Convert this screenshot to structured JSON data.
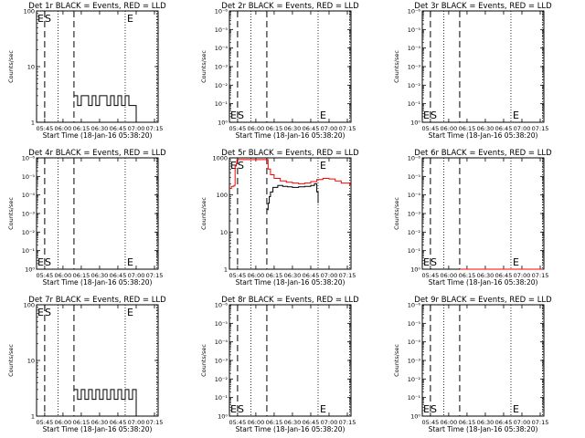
{
  "x_axis": {
    "label": "Start Time (18-Jan-16 05:38:20)",
    "range": [
      "05:38:20",
      "07:18:00"
    ],
    "ticks": [
      "05:45",
      "06:00",
      "06:15",
      "06:30",
      "06:45",
      "07:00",
      "07:15"
    ]
  },
  "y_axis_label": "Counts/sec",
  "colors": {
    "events": "#000000",
    "lld": "#ff0000"
  },
  "markers": {
    "dashed": [
      "05:45",
      "06:09"
    ],
    "dotted": [
      "05:56",
      "06:51",
      "07:17"
    ]
  },
  "flag_labels": {
    "E": "E",
    "S": "S"
  },
  "chart_data": [
    {
      "type": "line",
      "title": "Det 1r BLACK = Events, RED = LLD",
      "yscale": "log",
      "ylim": [
        1,
        100
      ],
      "yticks": [
        "1",
        "10",
        "100"
      ],
      "flags": {
        "left": "E S",
        "right": "E",
        "position": "top"
      },
      "series": [
        {
          "name": "Events",
          "color": "#000000",
          "x": [
            "06:09",
            "06:12",
            "06:15",
            "06:18",
            "06:21",
            "06:24",
            "06:27",
            "06:30",
            "06:33",
            "06:36",
            "06:39",
            "06:42",
            "06:45",
            "06:48",
            "06:51",
            "06:54",
            "06:57",
            "07:00"
          ],
          "y": [
            3,
            2,
            3,
            3,
            2,
            3,
            2,
            3,
            3,
            2,
            3,
            2,
            3,
            2,
            3,
            2,
            2,
            1
          ]
        }
      ]
    },
    {
      "type": "line",
      "title": "Det 2r BLACK = Events, RED = LLD",
      "yscale": "log",
      "ylim": [
        1,
        1000000
      ],
      "yticks": [
        "10⁰",
        "10⁻¹",
        "10⁻²",
        "10⁻³",
        "10⁻⁴",
        "10⁻⁵",
        "10⁻⁶"
      ],
      "flags": {
        "left": "E S",
        "right": "E",
        "position": "bottom"
      },
      "series": []
    },
    {
      "type": "line",
      "title": "Det 3r BLACK = Events, RED = LLD",
      "yscale": "log",
      "ylim": [
        1,
        1000000
      ],
      "yticks": [
        "10⁰",
        "10⁻¹",
        "10⁻²",
        "10⁻³",
        "10⁻⁴",
        "10⁻⁵",
        "10⁻⁶"
      ],
      "flags": {
        "left": "E S",
        "right": "E",
        "position": "bottom"
      },
      "series": []
    },
    {
      "type": "line",
      "title": "Det 4r BLACK = Events, RED = LLD",
      "yscale": "log",
      "ylim": [
        1,
        1000000
      ],
      "yticks": [
        "10⁰",
        "10⁻¹",
        "10⁻²",
        "10⁻³",
        "10⁻⁴",
        "10⁻⁵",
        "10⁻⁶"
      ],
      "flags": {
        "left": "E S",
        "right": "E",
        "position": "bottom"
      },
      "series": []
    },
    {
      "type": "line",
      "title": "Det 5r BLACK = Events, RED = LLD",
      "yscale": "log",
      "ylim": [
        1,
        1000
      ],
      "yticks": [
        "1",
        "10",
        "100",
        "1000"
      ],
      "flags": {
        "left": "E S",
        "right": "E",
        "position": "top"
      },
      "series": [
        {
          "name": "LLD",
          "color": "#ff0000",
          "x": [
            "05:38:20",
            "05:40",
            "05:42",
            "05:43",
            "05:44",
            "05:44:30",
            "06:09",
            "06:10",
            "06:12",
            "06:15",
            "06:20",
            "06:25",
            "06:30",
            "06:35",
            "06:40",
            "06:45",
            "06:50",
            "06:55",
            "07:00",
            "07:05",
            "07:10",
            "07:17"
          ],
          "y": [
            150,
            170,
            180,
            600,
            700,
            900,
            900,
            500,
            350,
            280,
            240,
            220,
            210,
            200,
            210,
            230,
            260,
            280,
            270,
            240,
            210,
            180
          ]
        },
        {
          "name": "Events",
          "color": "#000000",
          "x": [
            "06:09",
            "06:10",
            "06:11",
            "06:12",
            "06:14",
            "06:18",
            "06:22",
            "06:26",
            "06:30",
            "06:35",
            "06:40",
            "06:45",
            "06:48",
            "06:50",
            "06:51"
          ],
          "y": [
            40,
            60,
            90,
            120,
            160,
            180,
            170,
            165,
            160,
            165,
            170,
            180,
            200,
            120,
            60
          ]
        }
      ]
    },
    {
      "type": "line",
      "title": "Det 6r BLACK = Events, RED = LLD",
      "yscale": "log",
      "ylim": [
        1,
        1000000
      ],
      "yticks": [
        "10⁰",
        "10⁻¹",
        "10⁻²",
        "10⁻³",
        "10⁻⁴",
        "10⁻⁵",
        "10⁻⁶"
      ],
      "flags": {
        "left": "E S",
        "right": "E",
        "position": "bottom"
      },
      "series": [
        {
          "name": "LLD",
          "color": "#ff0000",
          "x": [
            "06:09",
            "07:17"
          ],
          "y": [
            1,
            1
          ]
        }
      ]
    },
    {
      "type": "line",
      "title": "Det 7r BLACK = Events, RED = LLD",
      "yscale": "log",
      "ylim": [
        1,
        100
      ],
      "yticks": [
        "1",
        "10",
        "100"
      ],
      "flags": {
        "left": "E S",
        "right": "E",
        "position": "top"
      },
      "series": [
        {
          "name": "Events",
          "color": "#000000",
          "x": [
            "06:09",
            "06:12",
            "06:15",
            "06:18",
            "06:21",
            "06:24",
            "06:27",
            "06:30",
            "06:33",
            "06:36",
            "06:39",
            "06:42",
            "06:45",
            "06:48",
            "06:51",
            "06:54",
            "06:57",
            "07:00"
          ],
          "y": [
            3,
            2,
            3,
            2,
            3,
            2,
            3,
            2,
            3,
            2,
            3,
            2,
            3,
            2,
            3,
            2,
            3,
            1
          ]
        }
      ]
    },
    {
      "type": "line",
      "title": "Det 8r BLACK = Events, RED = LLD",
      "yscale": "log",
      "ylim": [
        1,
        1000000
      ],
      "yticks": [
        "10⁰",
        "10⁻¹",
        "10⁻²",
        "10⁻³",
        "10⁻⁴",
        "10⁻⁵",
        "10⁻⁶"
      ],
      "flags": {
        "left": "E S",
        "right": "E",
        "position": "bottom"
      },
      "series": []
    },
    {
      "type": "line",
      "title": "Det 9r BLACK = Events, RED = LLD",
      "yscale": "log",
      "ylim": [
        1,
        1000000
      ],
      "yticks": [
        "10⁰",
        "10⁻¹",
        "10⁻²",
        "10⁻³",
        "10⁻⁴",
        "10⁻⁵",
        "10⁻⁶"
      ],
      "flags": {
        "left": "E S",
        "right": "E",
        "position": "bottom"
      },
      "series": []
    }
  ]
}
